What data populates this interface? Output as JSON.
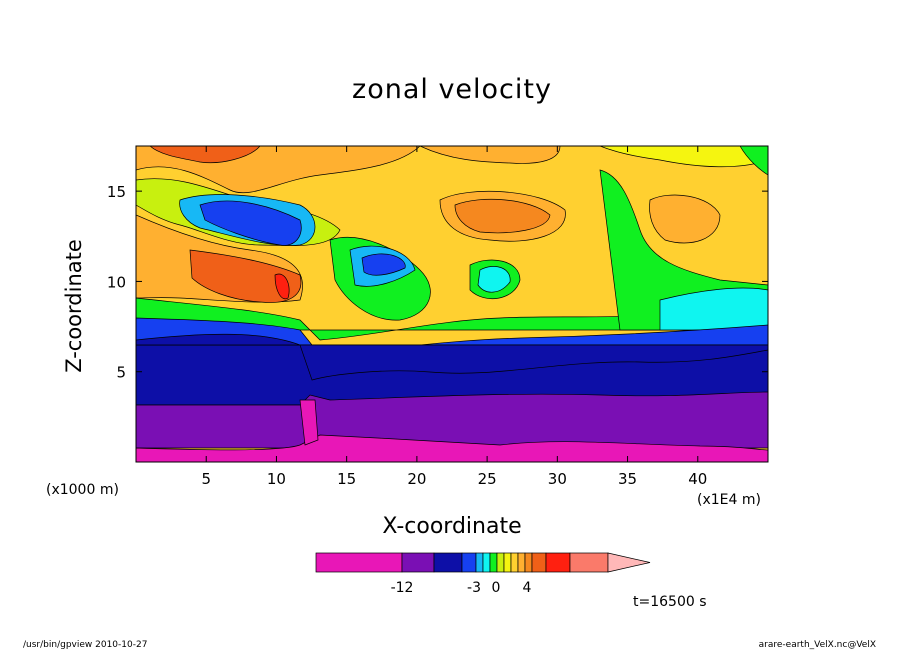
{
  "chart_data": {
    "type": "heatmap",
    "title": "zonal velocity",
    "xlabel": "X-coordinate",
    "ylabel": "Z-coordinate",
    "x_unit_label": "(x1E4 m)",
    "y_unit_label": "(x1000 m)",
    "x_ticks": [
      "5",
      "10",
      "15",
      "20",
      "25",
      "30",
      "35",
      "40"
    ],
    "y_ticks": [
      "5",
      "10",
      "15"
    ],
    "xlim": [
      0,
      45
    ],
    "ylim": [
      0,
      17.5
    ],
    "colorbar": {
      "tick_labels": [
        "-12",
        "-3",
        "0",
        "4"
      ],
      "colors": [
        "#e817b7",
        "#7a0fb4",
        "#0d0fa7",
        "#1640f0",
        "#17b8f5",
        "#0ff5f0",
        "#10f020",
        "#c8f00f",
        "#f5f510",
        "#ffd030",
        "#ffb030",
        "#f5881f",
        "#f06018",
        "#ff2010",
        "#fa7a6a",
        "#ffb8b8"
      ]
    },
    "annotations": [
      "t=16500 s"
    ]
  },
  "footer": {
    "left": "/usr/bin/gpview   2010-10-27",
    "right": "arare-earth_VelX.nc@VelX"
  }
}
